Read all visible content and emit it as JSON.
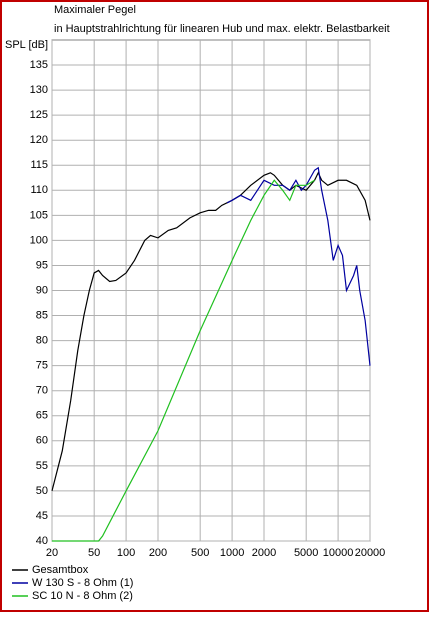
{
  "chart_data": {
    "type": "line",
    "title": "Maximaler Pegel",
    "subtitle": "in Hauptstrahlrichtung für linearen Hub und max. elektr. Belastbarkeit",
    "y_label": "SPL [dB]",
    "log_x": true,
    "grid": true,
    "xlim": [
      20,
      20000
    ],
    "ylim": [
      40,
      140
    ],
    "xticks": [
      20,
      50,
      100,
      200,
      500,
      1000,
      2000,
      5000,
      10000,
      20000
    ],
    "yticks": [
      40,
      45,
      50,
      55,
      60,
      65,
      70,
      75,
      80,
      85,
      90,
      95,
      100,
      105,
      110,
      115,
      120,
      125,
      130,
      135
    ],
    "legend": "bottom-left",
    "series": [
      {
        "name": "Gesamtbox",
        "color": "#000000",
        "x": [
          20,
          25,
          30,
          35,
          40,
          45,
          50,
          55,
          60,
          70,
          80,
          100,
          120,
          150,
          170,
          200,
          250,
          300,
          400,
          500,
          600,
          700,
          800,
          1000,
          1200,
          1500,
          2000,
          2300,
          2500,
          3000,
          3500,
          4000,
          5000,
          6000,
          6500,
          7000,
          8000,
          10000,
          12000,
          15000,
          18000,
          20000
        ],
        "values": [
          50,
          58,
          68,
          78,
          85,
          90,
          93.5,
          94,
          93,
          91.8,
          92,
          93.5,
          96,
          100,
          101,
          100.5,
          102,
          102.5,
          104.5,
          105.5,
          106,
          106,
          107,
          108,
          109,
          111,
          113,
          113.5,
          113,
          111,
          110,
          111,
          110,
          112,
          113.5,
          112,
          111,
          112,
          112,
          111,
          108,
          104
        ]
      },
      {
        "name": "W 130 S - 8 Ohm (1)",
        "color": "#0000a0",
        "x": [
          900,
          1000,
          1200,
          1500,
          2000,
          2500,
          3000,
          3500,
          4000,
          4500,
          5000,
          6000,
          6500,
          7000,
          8000,
          9000,
          10000,
          11000,
          12000,
          14000,
          15000,
          16000,
          18000,
          20000
        ],
        "values": [
          107.5,
          108,
          109,
          108,
          112,
          111,
          111,
          110,
          112,
          110,
          111,
          114,
          114.5,
          110,
          104,
          96,
          99,
          97,
          90,
          93,
          95,
          90,
          84,
          75
        ]
      },
      {
        "name": "SC 10 N - 8 Ohm (2)",
        "color": "#20c020",
        "x": [
          20,
          55,
          60,
          100,
          200,
          500,
          1000,
          1500,
          2000,
          2500,
          3000,
          3500,
          4000,
          5000,
          6000
        ],
        "values": [
          40,
          40,
          41,
          50,
          62,
          82,
          96,
          104,
          109,
          112,
          110,
          108,
          111,
          111,
          112
        ]
      }
    ]
  }
}
